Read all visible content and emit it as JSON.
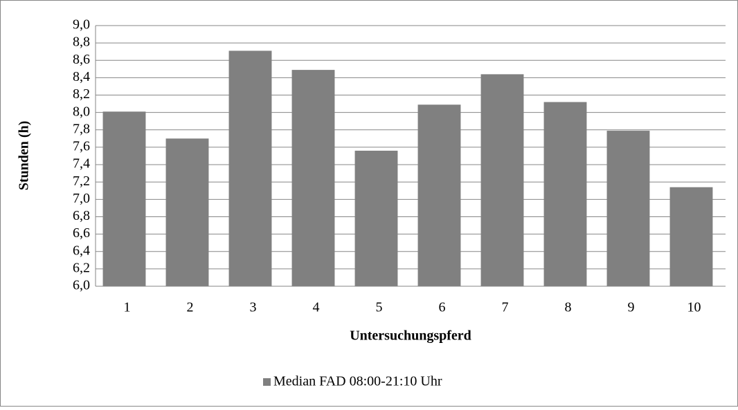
{
  "chart_data": {
    "type": "bar",
    "categories": [
      "1",
      "2",
      "3",
      "4",
      "5",
      "6",
      "7",
      "8",
      "9",
      "10"
    ],
    "series": [
      {
        "name": "Median FAD 08:00-21:10 Uhr",
        "color": "#808080",
        "values": [
          8.01,
          7.7,
          8.71,
          8.49,
          7.56,
          8.09,
          8.44,
          8.12,
          7.79,
          7.14
        ]
      }
    ],
    "ylabel": "Stunden (h)",
    "xlabel": "Untersuchungspferd",
    "ylim": [
      6.0,
      9.0
    ],
    "yticks": [
      {
        "value": 6.0,
        "label": "6,0"
      },
      {
        "value": 6.2,
        "label": "6,2"
      },
      {
        "value": 6.4,
        "label": "6,4"
      },
      {
        "value": 6.6,
        "label": "6,6"
      },
      {
        "value": 6.8,
        "label": "6,8"
      },
      {
        "value": 7.0,
        "label": "7,0"
      },
      {
        "value": 7.2,
        "label": "7,2"
      },
      {
        "value": 7.4,
        "label": "7,4"
      },
      {
        "value": 7.6,
        "label": "7,6"
      },
      {
        "value": 7.8,
        "label": "7,8"
      },
      {
        "value": 8.0,
        "label": "8,0"
      },
      {
        "value": 8.2,
        "label": "8,2"
      },
      {
        "value": 8.4,
        "label": "8,4"
      },
      {
        "value": 8.6,
        "label": "8,6"
      },
      {
        "value": 8.8,
        "label": "8,8"
      },
      {
        "value": 9.0,
        "label": "9,0"
      }
    ],
    "grid": true,
    "legend": "bottom"
  }
}
